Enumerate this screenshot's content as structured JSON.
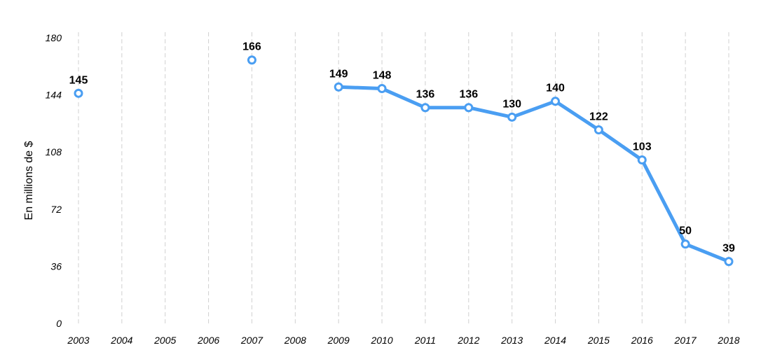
{
  "chart_data": {
    "type": "line",
    "title": "",
    "xlabel": "",
    "ylabel": "En millions de $",
    "categories": [
      "2003",
      "2004",
      "2005",
      "2006",
      "2007",
      "2008",
      "2009",
      "2010",
      "2011",
      "2012",
      "2013",
      "2014",
      "2015",
      "2016",
      "2017",
      "2018"
    ],
    "series": [
      {
        "values": [
          145,
          null,
          null,
          null,
          166,
          null,
          149,
          148,
          136,
          136,
          130,
          140,
          122,
          103,
          50,
          39
        ],
        "color": "#4a9ef2"
      }
    ],
    "ylim": [
      0,
      180
    ],
    "yticks": [
      "0",
      "36",
      "72",
      "108",
      "144",
      "180"
    ],
    "grid": "vertical-dashed",
    "legend": "none"
  }
}
